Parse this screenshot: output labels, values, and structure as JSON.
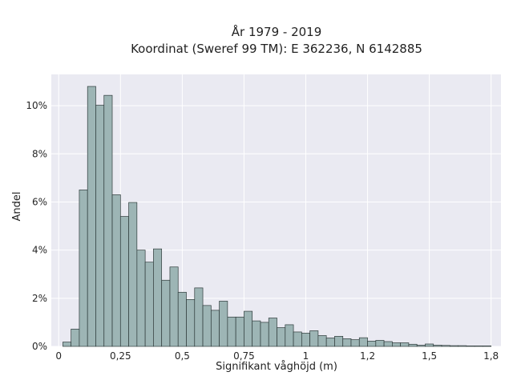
{
  "chart_data": {
    "type": "bar",
    "title_lines": [
      "År 1979 - 2019",
      "Koordinat (Sweref 99 TM): E 362236, N 6142885"
    ],
    "xlabel": "Signifikant våghöjd (m)",
    "ylabel": "Andel",
    "xlim": [
      -0.03,
      1.79
    ],
    "ylim": [
      0,
      11.3
    ],
    "x_ticks": [
      {
        "value": 0,
        "label": "0"
      },
      {
        "value": 0.25,
        "label": "0,25"
      },
      {
        "value": 0.5,
        "label": "0,5"
      },
      {
        "value": 0.75,
        "label": "0,75"
      },
      {
        "value": 1,
        "label": "1"
      },
      {
        "value": 1.25,
        "label": "1,2"
      },
      {
        "value": 1.5,
        "label": "1,5"
      },
      {
        "value": 1.75,
        "label": "1,8"
      }
    ],
    "y_ticks": [
      {
        "value": 0,
        "label": "0%"
      },
      {
        "value": 2,
        "label": "2%"
      },
      {
        "value": 4,
        "label": "4%"
      },
      {
        "value": 6,
        "label": "6%"
      },
      {
        "value": 8,
        "label": "8%"
      },
      {
        "value": 10,
        "label": "10%"
      }
    ],
    "bin_width": 0.0333,
    "bin_starts": [
      0.0167,
      0.05,
      0.0833,
      0.1167,
      0.15,
      0.1833,
      0.2167,
      0.25,
      0.2833,
      0.3167,
      0.35,
      0.3833,
      0.4167,
      0.45,
      0.4833,
      0.5167,
      0.55,
      0.5833,
      0.6167,
      0.65,
      0.6833,
      0.7167,
      0.75,
      0.7833,
      0.8167,
      0.85,
      0.8833,
      0.9167,
      0.95,
      0.9833,
      1.0167,
      1.05,
      1.0833,
      1.1167,
      1.15,
      1.1833,
      1.2167,
      1.25,
      1.2833,
      1.3167,
      1.35,
      1.3833,
      1.4167,
      1.45,
      1.4833,
      1.5167,
      1.55,
      1.5833,
      1.6167,
      1.65,
      1.6833,
      1.7167
    ],
    "values": [
      0.18,
      0.72,
      6.5,
      10.8,
      10.02,
      10.43,
      6.3,
      5.4,
      5.98,
      4.0,
      3.5,
      4.05,
      2.75,
      3.3,
      2.25,
      1.95,
      2.43,
      1.7,
      1.5,
      1.88,
      1.22,
      1.22,
      1.46,
      1.06,
      1.0,
      1.18,
      0.78,
      0.9,
      0.6,
      0.55,
      0.65,
      0.45,
      0.35,
      0.42,
      0.32,
      0.28,
      0.36,
      0.22,
      0.25,
      0.2,
      0.15,
      0.15,
      0.09,
      0.05,
      0.1,
      0.05,
      0.04,
      0.03,
      0.03,
      0.02,
      0.02,
      0.02
    ],
    "grid": true,
    "colors": {
      "background": "#eaeaf2",
      "bar_fill": "#9db5b5",
      "bar_edge": "#2f3b3b",
      "grid": "#ffffff"
    }
  }
}
